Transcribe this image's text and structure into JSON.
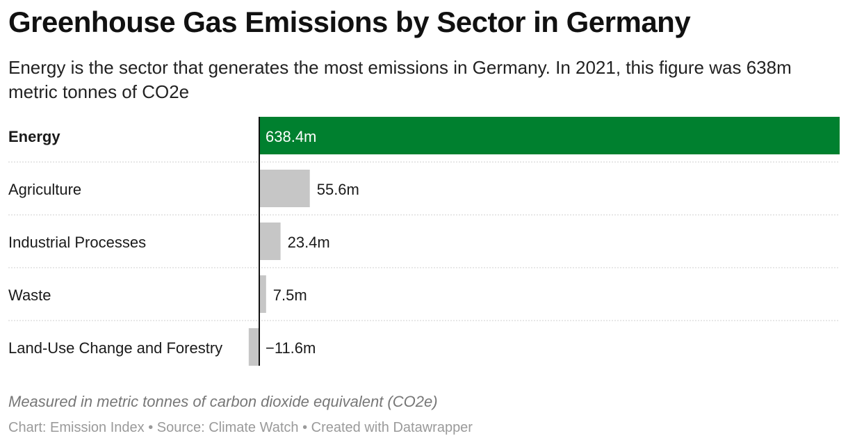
{
  "title": "Greenhouse Gas Emissions by Sector in Germany",
  "subtitle": "Energy is the sector that generates the most emissions in Germany. In 2021, this figure was 638m metric tonnes of CO2e",
  "note": "Measured in metric tonnes of carbon dioxide equivalent (CO2e)",
  "credits": "Chart: Emission Index • Source: Climate Watch • Created with Datawrapper",
  "colors": {
    "highlight": "#00802f",
    "bar": "#c6c6c6",
    "axis": "#111111",
    "separator": "#cfcfcf"
  },
  "chart_data": {
    "type": "bar",
    "orientation": "horizontal",
    "categories": [
      "Energy",
      "Agriculture",
      "Industrial Processes",
      "Waste",
      "Land-Use Change and Forestry"
    ],
    "values": [
      638.4,
      55.6,
      23.4,
      7.5,
      -11.6
    ],
    "value_labels": [
      "638.4m",
      "55.6m",
      "23.4m",
      "7.5m",
      "−11.6m"
    ],
    "highlighted": "Energy",
    "unit": "m metric tonnes CO2e",
    "grid": false,
    "legend": "none"
  }
}
